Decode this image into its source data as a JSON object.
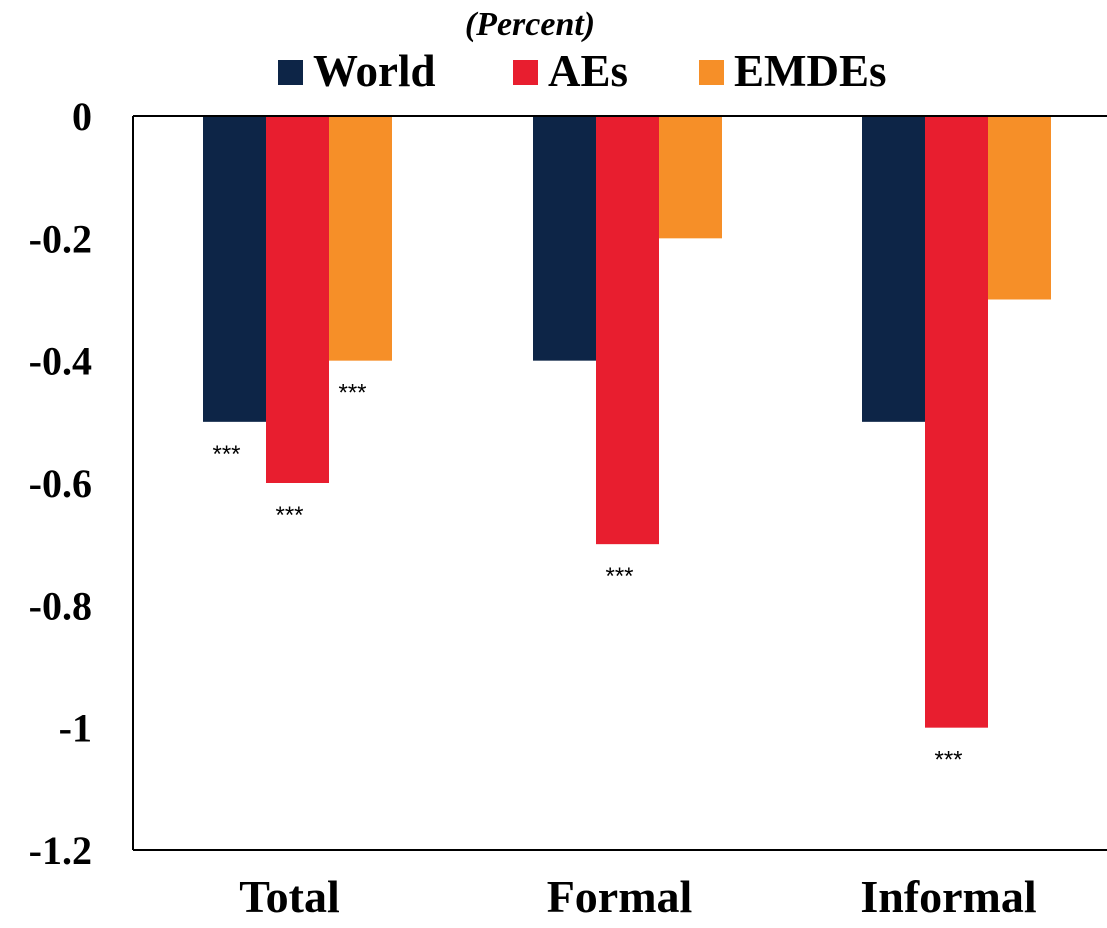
{
  "chart_data": {
    "type": "bar",
    "subtitle": "(Percent)",
    "categories": [
      "Total",
      "Formal",
      "Informal"
    ],
    "series": [
      {
        "name": "World",
        "color": "#0d2547",
        "values": [
          -0.5,
          -0.4,
          -0.5
        ],
        "significance": [
          "***",
          "",
          ""
        ]
      },
      {
        "name": "AEs",
        "color": "#e81e2f",
        "values": [
          -0.6,
          -0.7,
          -1.0
        ],
        "significance": [
          "***",
          "***",
          "***"
        ]
      },
      {
        "name": "EMDEs",
        "color": "#f68f28",
        "values": [
          -0.4,
          -0.2,
          -0.3
        ],
        "significance": [
          "***",
          "",
          ""
        ]
      }
    ],
    "yticks": [
      "0",
      "-0.2",
      "-0.4",
      "-0.6",
      "-0.8",
      "-1",
      "-1.2"
    ],
    "ylim": [
      -1.2,
      0
    ],
    "grid": false,
    "legend_position": "top"
  }
}
